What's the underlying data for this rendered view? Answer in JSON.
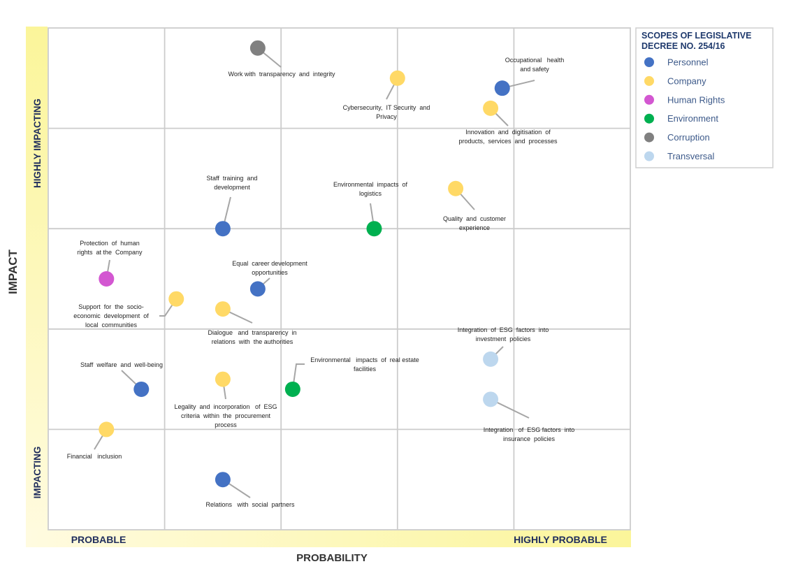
{
  "chart_data": {
    "type": "scatter",
    "xlabel": "PROBABILITY",
    "ylabel": "IMPACT",
    "x_band_labels": [
      "PROBABLE",
      "HIGHLY PROBABLE"
    ],
    "y_band_labels": [
      "HIGHLY IMPACTING",
      "IMPACTING"
    ],
    "xlim": [
      0,
      5
    ],
    "ylim": [
      0,
      5
    ],
    "grid": true,
    "legend_placement": "right",
    "legend": {
      "title_lines": [
        "SCOPES OF LEGISLATIVE",
        "DECREE NO. 254/16"
      ],
      "entries": [
        {
          "key": "personnel",
          "label": "Personnel",
          "color": "#4472c4"
        },
        {
          "key": "company",
          "label": "Company",
          "color": "#ffd966"
        },
        {
          "key": "human_rights",
          "label": "Human Rights",
          "color": "#d357d1"
        },
        {
          "key": "environment",
          "label": "Environment",
          "color": "#00b050"
        },
        {
          "key": "corruption",
          "label": "Corruption",
          "color": "#808080"
        },
        {
          "key": "transversal",
          "label": "Transversal",
          "color": "#bdd7ee"
        }
      ]
    },
    "points": [
      {
        "label_lines": [
          "Work with  transparency  and  integrity"
        ],
        "category": "corruption",
        "x": 1.8,
        "y": 4.8
      },
      {
        "label_lines": [
          "Cybersecurity,  IT Security  and",
          "Privacy"
        ],
        "category": "company",
        "x": 3.0,
        "y": 4.5
      },
      {
        "label_lines": [
          "Occupational   health",
          "and safety"
        ],
        "category": "personnel",
        "x": 3.9,
        "y": 4.4
      },
      {
        "label_lines": [
          "Innovation  and  digitisation  of",
          "products,  services  and  processes"
        ],
        "category": "company",
        "x": 3.8,
        "y": 4.2
      },
      {
        "label_lines": [
          "Staff  training  and",
          "development"
        ],
        "category": "personnel",
        "x": 1.5,
        "y": 3.0
      },
      {
        "label_lines": [
          "Environmental  impacts  of",
          "logistics"
        ],
        "category": "environment",
        "x": 2.8,
        "y": 3.0
      },
      {
        "label_lines": [
          "Quality  and  customer",
          "experience"
        ],
        "category": "company",
        "x": 3.5,
        "y": 3.4
      },
      {
        "label_lines": [
          "Protection  of  human",
          "rights  at the  Company"
        ],
        "category": "human_rights",
        "x": 0.5,
        "y": 2.5
      },
      {
        "label_lines": [
          "Equal  career development",
          "opportunities"
        ],
        "category": "personnel",
        "x": 1.8,
        "y": 2.4
      },
      {
        "label_lines": [
          "Support  for  the  socio-",
          "economic  development  of",
          "local  communities"
        ],
        "category": "company",
        "x": 1.1,
        "y": 2.3
      },
      {
        "label_lines": [
          "Dialogue   and  transparency  in",
          "relations  with  the authorities"
        ],
        "category": "company",
        "x": 1.5,
        "y": 2.2
      },
      {
        "label_lines": [
          "Integration  of  ESG  factors  into",
          "investment  policies"
        ],
        "category": "transversal",
        "x": 3.8,
        "y": 1.7
      },
      {
        "label_lines": [
          "Staff  welfare  and  well-being"
        ],
        "category": "personnel",
        "x": 0.8,
        "y": 1.4
      },
      {
        "label_lines": [
          "Legality  and  incorporation   of  ESG",
          "criteria  within  the  procurement",
          "process"
        ],
        "category": "company",
        "x": 1.5,
        "y": 1.5
      },
      {
        "label_lines": [
          "Environmental   impacts  of  real estate",
          "facilities"
        ],
        "category": "environment",
        "x": 2.1,
        "y": 1.4
      },
      {
        "label_lines": [
          "Integration   of  ESG factors  into",
          "insurance  policies"
        ],
        "category": "transversal",
        "x": 3.8,
        "y": 1.3
      },
      {
        "label_lines": [
          "Financial   inclusion"
        ],
        "category": "company",
        "x": 0.5,
        "y": 1.0
      },
      {
        "label_lines": [
          "Relations   with  social  partners"
        ],
        "category": "personnel",
        "x": 1.5,
        "y": 0.5
      }
    ]
  }
}
